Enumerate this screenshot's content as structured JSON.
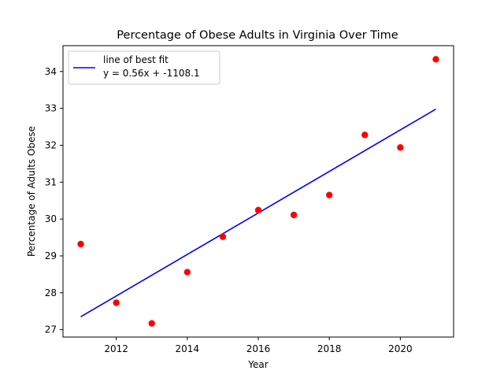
{
  "chart_data": {
    "type": "scatter",
    "title": "Percentage of Obese Adults in Virginia Over Time",
    "xlabel": "Year",
    "ylabel": "Percentage of Adults Obese",
    "xlim": [
      2010.5,
      2021.5
    ],
    "ylim": [
      26.8,
      34.7
    ],
    "xticks": [
      "2012",
      "2014",
      "2016",
      "2018",
      "2020"
    ],
    "yticks": [
      "27",
      "28",
      "29",
      "30",
      "31",
      "32",
      "33",
      "34"
    ],
    "grid": false,
    "legend_position": "top-left",
    "points": {
      "color": "#ff0000",
      "x": [
        2011,
        2012,
        2013,
        2014,
        2015,
        2016,
        2017,
        2018,
        2019,
        2020,
        2021
      ],
      "y": [
        29.32,
        27.73,
        27.17,
        28.56,
        29.52,
        30.24,
        30.11,
        30.65,
        32.28,
        31.94,
        34.33
      ]
    },
    "fit_line": {
      "name": "line of best fit",
      "equation": "y = 0.56x + -1108.1",
      "color": "#0000ff",
      "x": [
        2011,
        2021
      ],
      "y": [
        27.35,
        32.98
      ]
    }
  }
}
